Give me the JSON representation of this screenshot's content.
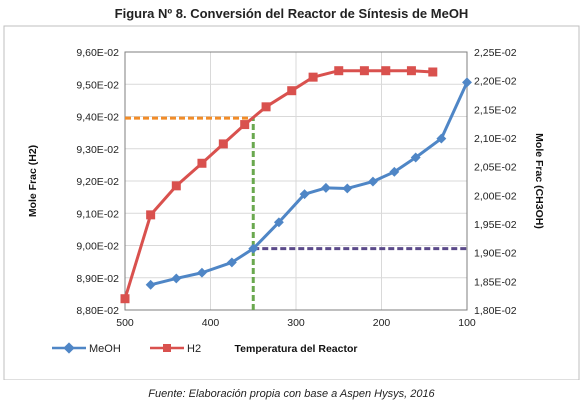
{
  "figure": {
    "title": "Figura Nº 8. Conversión del Reactor de Síntesis de MeOH",
    "source": "Fuente: Elaboración propia con base a Aspen Hysys, 2016"
  },
  "colors": {
    "meoh": "#4f86c6",
    "h2": "#d9514e",
    "orange_guide": "#f28c28",
    "green_guide": "#6aa84f",
    "purple_guide": "#5b4a8a"
  },
  "chart_data": {
    "type": "line",
    "xlabel": "Temperatura del Reactor",
    "ylabel_left": "Mole Frac (H2)",
    "ylabel_right": "Mole Frac (CH3OH)",
    "xlim": [
      500,
      100
    ],
    "ylim_left": [
      0.088,
      0.096
    ],
    "ylim_right": [
      0.018,
      0.0225
    ],
    "x_ticks": [
      "500",
      "400",
      "300",
      "200",
      "100"
    ],
    "x_tick_values": [
      500,
      400,
      300,
      200,
      100
    ],
    "y_left_ticks": [
      "8,80E-02",
      "8,90E-02",
      "9,00E-02",
      "9,10E-02",
      "9,20E-02",
      "9,30E-02",
      "9,40E-02",
      "9,50E-02",
      "9,60E-02"
    ],
    "y_left_tick_values": [
      0.088,
      0.089,
      0.09,
      0.091,
      0.092,
      0.093,
      0.094,
      0.095,
      0.096
    ],
    "y_right_ticks": [
      "1,80E-02",
      "1,85E-02",
      "1,90E-02",
      "1,95E-02",
      "2,00E-02",
      "2,05E-02",
      "2,10E-02",
      "2,15E-02",
      "2,20E-02",
      "2,25E-02"
    ],
    "y_right_tick_values": [
      0.018,
      0.0185,
      0.019,
      0.0195,
      0.02,
      0.0205,
      0.021,
      0.0215,
      0.022,
      0.0225
    ],
    "grid": true,
    "legend_position": "bottom-left",
    "series": [
      {
        "name": "MeOH",
        "axis": "right",
        "marker": "diamond",
        "x": [
          470,
          440,
          410,
          375,
          350,
          320,
          290,
          265,
          240,
          210,
          185,
          160,
          130,
          100
        ],
        "y": [
          0.01844,
          0.01855,
          0.01865,
          0.01883,
          0.01907,
          0.01953,
          0.02002,
          0.02013,
          0.02012,
          0.02024,
          0.02041,
          0.02066,
          0.02099,
          0.02197
        ]
      },
      {
        "name": "H2",
        "axis": "left",
        "marker": "square",
        "x": [
          500,
          470,
          440,
          410,
          385,
          360,
          335,
          305,
          280,
          250,
          220,
          195,
          165,
          140
        ],
        "y": [
          0.08835,
          0.09095,
          0.09185,
          0.09255,
          0.09315,
          0.09375,
          0.0943,
          0.0948,
          0.09522,
          0.09542,
          0.09542,
          0.09542,
          0.09542,
          0.09538
        ]
      }
    ],
    "guides": [
      {
        "type": "horizontal",
        "axis": "left",
        "value": 0.09395,
        "from_x": 500,
        "to_x": 355,
        "color": "orange_guide"
      },
      {
        "type": "vertical",
        "x": 350,
        "from_y_left": 0.088,
        "to_y_left": 0.09395,
        "color": "green_guide"
      },
      {
        "type": "horizontal",
        "axis": "right",
        "value": 0.01907,
        "from_x": 350,
        "to_x": 100,
        "color": "purple_guide"
      }
    ]
  }
}
